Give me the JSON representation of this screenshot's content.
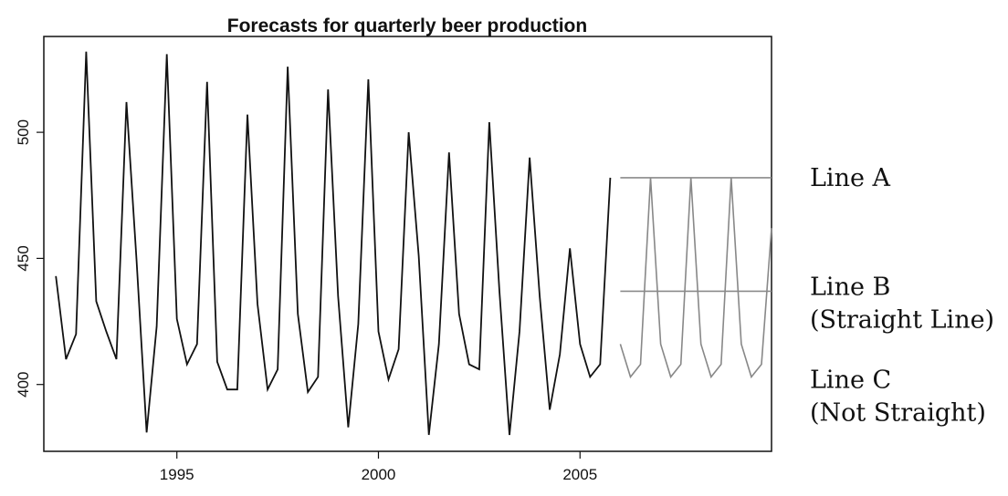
{
  "chart_data": {
    "type": "line",
    "title": "Forecasts for quarterly beer production",
    "xlabel": "",
    "ylabel": "",
    "xlim": [
      1991.7,
      2009.75
    ],
    "ylim": [
      373.5,
      538
    ],
    "x_ticks": [
      1995,
      2000,
      2005
    ],
    "y_ticks": [
      400,
      450,
      500
    ],
    "grid": false,
    "series": [
      {
        "start": 1992.0,
        "step": 0.25,
        "color": "#111111",
        "values": [
          443,
          410,
          420,
          532,
          433,
          421,
          410,
          512,
          449,
          381,
          423,
          531,
          426,
          408,
          416,
          520,
          409,
          398,
          398,
          507,
          432,
          398,
          406,
          526,
          428,
          397,
          403,
          517,
          435,
          383,
          424,
          521,
          421,
          402,
          414,
          500,
          451,
          380,
          416,
          492,
          428,
          408,
          406,
          504,
          437,
          380,
          421,
          490,
          435,
          390,
          412,
          454,
          416,
          403,
          408,
          482
        ]
      },
      {
        "start": 2006.0,
        "step": 0.25,
        "color": "#888888",
        "values": [
          416,
          403,
          408,
          482,
          416,
          403,
          408,
          482,
          416,
          403,
          408,
          482,
          416,
          403,
          408,
          462
        ]
      },
      {
        "color": "#8a8a8a",
        "x": [
          2006.0,
          2009.75
        ],
        "values": [
          482,
          482
        ]
      },
      {
        "color": "#8a8a8a",
        "x": [
          2006.0,
          2009.75
        ],
        "values": [
          437,
          437
        ]
      }
    ],
    "annotations": [
      {
        "lines": [
          "Line A"
        ],
        "value": 482
      },
      {
        "lines": [
          "Line B",
          "(Straight Line)"
        ],
        "value": 437
      },
      {
        "lines": [
          "Line C",
          "(Not Straight)"
        ],
        "value": 400
      }
    ]
  }
}
